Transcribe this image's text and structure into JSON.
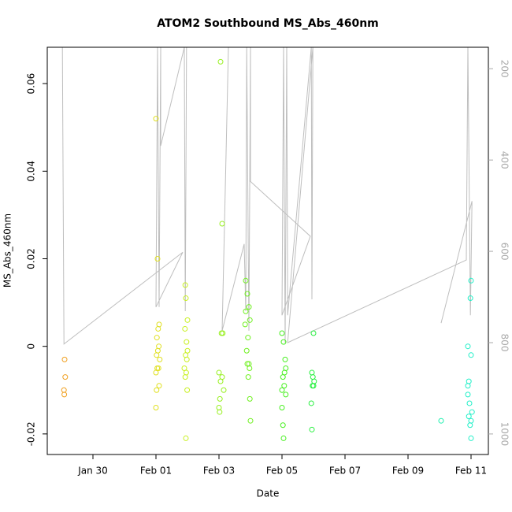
{
  "chart_data": {
    "type": "scatter",
    "title": "ATOM2 Southbound MS_Abs_460nm",
    "x_label": "Date",
    "y_label": "MS_Abs_460nm",
    "xlim": [
      28.55,
      42.55
    ],
    "xticks": [
      {
        "value": 30,
        "label": "Jan 30"
      },
      {
        "value": 32,
        "label": "Feb 01"
      },
      {
        "value": 34,
        "label": "Feb 03"
      },
      {
        "value": 36,
        "label": "Feb 05"
      },
      {
        "value": 38,
        "label": "Feb 07"
      },
      {
        "value": 40,
        "label": "Feb 09"
      },
      {
        "value": 42,
        "label": "Feb 11"
      }
    ],
    "ylim": [
      -0.0247,
      0.0683
    ],
    "yticks": [
      -0.02,
      0,
      0.02,
      0.04,
      0.06
    ],
    "y2lim": [
      1045,
      153
    ],
    "y2ticks": [
      200,
      400,
      600,
      800,
      1000
    ],
    "series": [
      {
        "type": "line",
        "axis": "y2",
        "color": "#bebebe",
        "x": [
          29.03,
          29.08,
          32.85,
          32.0,
          32.05,
          32.1,
          32.15,
          32.15,
          32.9,
          32.93,
          32.97,
          34.3,
          34.1,
          34.8,
          34.85,
          34.88,
          34.95,
          35.0,
          35.0,
          36.9,
          36.0,
          36.05,
          36.1,
          36.15,
          36.18,
          36.93,
          36.95,
          36.98,
          36.18,
          41.85,
          41.9,
          41.98,
          42.03,
          41.05
        ],
        "values": [
          153,
          803,
          602,
          722,
          153,
          722,
          153,
          369,
          153,
          731,
          153,
          153,
          774,
          584,
          731,
          153,
          774,
          153,
          447,
          567,
          740,
          153,
          800,
          153,
          740,
          153,
          705,
          153,
          800,
          619,
          153,
          740,
          490,
          757
        ]
      },
      {
        "type": "scatter",
        "color": "#f0a020",
        "x": [
          29.1,
          29.12,
          29.08,
          29.09
        ],
        "values": [
          -0.003,
          -0.007,
          -0.01,
          -0.011
        ]
      },
      {
        "type": "scatter",
        "color": "#e0e020",
        "x": [
          32.0,
          32.05,
          32.1,
          32.07,
          32.03,
          32.09,
          32.06,
          32.02,
          32.12,
          32.04,
          32.08,
          32.0,
          32.1,
          32.02,
          32.0
        ],
        "values": [
          0.052,
          0.02,
          0.005,
          0.004,
          0.002,
          0.0,
          -0.001,
          -0.002,
          -0.003,
          -0.005,
          -0.005,
          -0.006,
          -0.009,
          -0.01,
          -0.014
        ]
      },
      {
        "type": "scatter",
        "color": "#c8f020",
        "x": [
          32.93,
          32.95,
          33.0,
          32.92,
          32.97,
          33.0,
          32.94,
          32.98,
          32.9,
          32.96,
          32.93,
          32.99,
          32.95
        ],
        "values": [
          0.014,
          0.011,
          0.006,
          0.004,
          0.001,
          -0.001,
          -0.002,
          -0.003,
          -0.005,
          -0.006,
          -0.007,
          -0.01,
          -0.021
        ]
      },
      {
        "type": "scatter",
        "color": "#98f020",
        "x": [
          34.05,
          34.1,
          34.08,
          34.12,
          34.0,
          34.1,
          34.05,
          34.15,
          34.03,
          34.0,
          34.02
        ],
        "values": [
          0.065,
          0.028,
          0.003,
          0.003,
          -0.006,
          -0.007,
          -0.008,
          -0.01,
          -0.012,
          -0.014,
          -0.015
        ]
      },
      {
        "type": "scatter",
        "color": "#70f020",
        "x": [
          34.85,
          34.9,
          34.95,
          34.85,
          34.98,
          34.83,
          34.92,
          34.88,
          34.9,
          34.95,
          34.97,
          34.93,
          34.98,
          35.0
        ],
        "values": [
          0.015,
          0.012,
          0.009,
          0.008,
          0.006,
          0.005,
          0.002,
          -0.001,
          -0.004,
          -0.004,
          -0.005,
          -0.007,
          -0.012,
          -0.017
        ]
      },
      {
        "type": "scatter",
        "color": "#48f020",
        "x": [
          36.0,
          36.05,
          36.1,
          36.12,
          36.08,
          36.03,
          36.07,
          36.0,
          36.12,
          36.0,
          36.03,
          36.05
        ],
        "values": [
          0.003,
          0.001,
          -0.003,
          -0.005,
          -0.006,
          -0.007,
          -0.009,
          -0.01,
          -0.011,
          -0.014,
          -0.018,
          -0.021
        ]
      },
      {
        "type": "scatter",
        "color": "#28f040",
        "x": [
          37.0,
          36.95,
          36.98,
          37.02,
          36.97,
          37.0,
          36.93,
          36.95
        ],
        "values": [
          0.003,
          -0.006,
          -0.007,
          -0.008,
          -0.009,
          -0.009,
          -0.013,
          -0.019
        ]
      },
      {
        "type": "scatter",
        "color": "#20f0b0",
        "x": [
          41.05
        ],
        "values": [
          -0.017
        ]
      },
      {
        "type": "scatter",
        "color": "#20f0c8",
        "x": [
          42.0,
          41.98,
          41.9,
          42.0,
          41.93,
          41.9,
          41.9,
          41.95,
          42.03,
          41.93,
          42.0,
          41.97,
          42.0
        ],
        "values": [
          0.015,
          0.011,
          0.0,
          -0.002,
          -0.008,
          -0.009,
          -0.011,
          -0.013,
          -0.015,
          -0.016,
          -0.017,
          -0.018,
          -0.021
        ]
      }
    ]
  }
}
